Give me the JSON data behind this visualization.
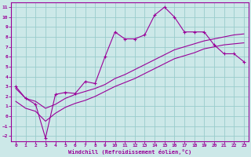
{
  "xlabel": "Windchill (Refroidissement éolien,°C)",
  "bg_color": "#cce8e8",
  "grid_color": "#99cccc",
  "line_color": "#990099",
  "xlim": [
    -0.5,
    23.5
  ],
  "ylim": [
    -2.5,
    11.5
  ],
  "xticks": [
    0,
    1,
    2,
    3,
    4,
    5,
    6,
    7,
    8,
    9,
    10,
    11,
    12,
    13,
    14,
    15,
    16,
    17,
    18,
    19,
    20,
    21,
    22,
    23
  ],
  "yticks": [
    -2,
    -1,
    0,
    1,
    2,
    3,
    4,
    5,
    6,
    7,
    8,
    9,
    10,
    11
  ],
  "series1_x": [
    0,
    1,
    2,
    3,
    4,
    5,
    6,
    7,
    8,
    9,
    10,
    11,
    12,
    13,
    14,
    15,
    16,
    17,
    18,
    19,
    20,
    21,
    22,
    23
  ],
  "series1_y": [
    3.0,
    1.8,
    1.2,
    -2.2,
    2.2,
    2.4,
    2.3,
    3.5,
    3.3,
    6.0,
    8.5,
    7.8,
    7.8,
    8.2,
    10.2,
    11.0,
    10.0,
    8.5,
    8.5,
    8.5,
    7.2,
    6.3,
    6.3,
    5.5
  ],
  "series2_x": [
    0,
    1,
    2,
    3,
    4,
    5,
    6,
    7,
    8,
    9,
    10,
    11,
    12,
    13,
    14,
    15,
    16,
    17,
    18,
    19,
    20,
    21,
    22,
    23
  ],
  "series2_y": [
    2.8,
    1.8,
    1.5,
    0.8,
    1.2,
    1.8,
    2.2,
    2.5,
    2.8,
    3.2,
    3.8,
    4.2,
    4.7,
    5.2,
    5.7,
    6.2,
    6.7,
    7.0,
    7.3,
    7.6,
    7.8,
    8.0,
    8.2,
    8.3
  ],
  "series3_x": [
    0,
    1,
    2,
    3,
    4,
    5,
    6,
    7,
    8,
    9,
    10,
    11,
    12,
    13,
    14,
    15,
    16,
    17,
    18,
    19,
    20,
    21,
    22,
    23
  ],
  "series3_y": [
    1.5,
    0.8,
    0.5,
    -0.5,
    0.3,
    0.9,
    1.3,
    1.6,
    2.0,
    2.5,
    3.0,
    3.4,
    3.8,
    4.3,
    4.8,
    5.3,
    5.8,
    6.1,
    6.4,
    6.8,
    7.0,
    7.2,
    7.3,
    7.4
  ]
}
